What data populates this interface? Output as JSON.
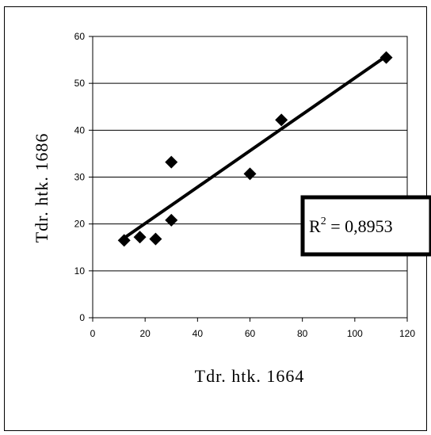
{
  "chart_data": {
    "type": "scatter",
    "title": "",
    "xlabel": "Tdr. htk. 1664",
    "ylabel": "Tdr. htk. 1686",
    "xlim": [
      0,
      120
    ],
    "ylim": [
      0,
      60
    ],
    "x_ticks": [
      0,
      20,
      40,
      60,
      80,
      100,
      120
    ],
    "y_ticks": [
      0,
      10,
      20,
      30,
      40,
      50,
      60
    ],
    "grid": "horizontal",
    "points": [
      {
        "x": 12,
        "y": 16.5
      },
      {
        "x": 18,
        "y": 17.2
      },
      {
        "x": 24,
        "y": 16.8
      },
      {
        "x": 30,
        "y": 20.8
      },
      {
        "x": 30,
        "y": 33.2
      },
      {
        "x": 60,
        "y": 30.7
      },
      {
        "x": 72,
        "y": 42.2
      },
      {
        "x": 112,
        "y": 55.5
      }
    ],
    "trendline": {
      "type": "linear",
      "x_start": 12,
      "y_start": 17.0,
      "x_end": 112,
      "y_end": 55.8
    },
    "annotation": {
      "r2_label": "R",
      "r2_exponent": "2",
      "r2_value": " = 0,8953"
    },
    "colors": {
      "marker": "#000000",
      "line": "#000000",
      "grid": "#000000"
    }
  }
}
